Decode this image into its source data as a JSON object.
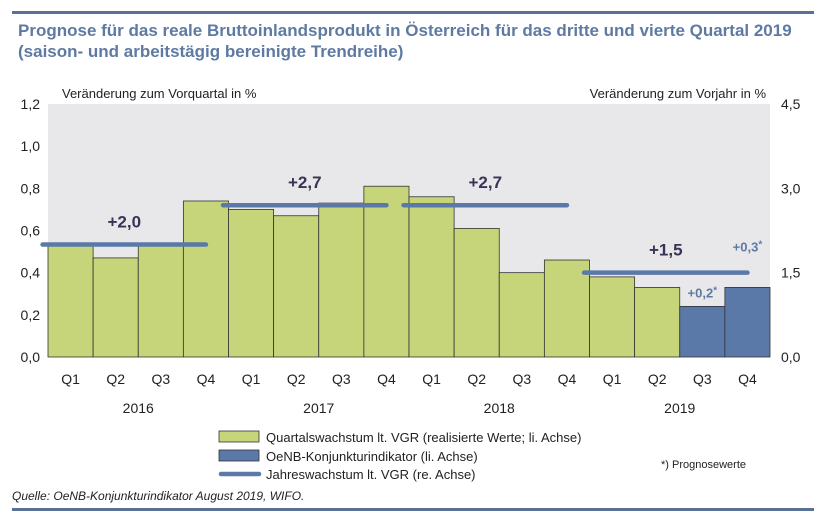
{
  "title": "Prognose für das reale Bruttoinlandsprodukt in Österreich für das dritte und vierte Quartal 2019 (saison- und arbeitstägig bereinigte Trendreihe)",
  "source": "Quelle: OeNB-Konjunkturindikator August 2019, WIFO.",
  "footnote": "*) Prognosewerte",
  "colors": {
    "realized_bar": "#c6d47a",
    "forecast_bar": "#5a78a8",
    "annual_line": "#5a78a8",
    "title": "#5e7aa3",
    "plot_bg": "#e8e8ea"
  },
  "chart_data": {
    "type": "bar",
    "left_axis": {
      "label": "Veränderung zum Vorquartal in %",
      "ylim": [
        0,
        1.2
      ],
      "ticks": [
        "0,0",
        "0,2",
        "0,4",
        "0,6",
        "0,8",
        "1,0",
        "1,2"
      ]
    },
    "right_axis": {
      "label": "Veränderung zum Vorjahr in %",
      "ylim": [
        0,
        4.5
      ],
      "ticks": [
        "0,0",
        "1,5",
        "3,0",
        "4,5"
      ]
    },
    "categories": [
      "Q1",
      "Q2",
      "Q3",
      "Q4",
      "Q1",
      "Q2",
      "Q3",
      "Q4",
      "Q1",
      "Q2",
      "Q3",
      "Q4",
      "Q1",
      "Q2",
      "Q3",
      "Q4"
    ],
    "years": [
      {
        "label": "2016",
        "start": 0,
        "end": 3
      },
      {
        "label": "2017",
        "start": 4,
        "end": 7
      },
      {
        "label": "2018",
        "start": 8,
        "end": 11
      },
      {
        "label": "2019",
        "start": 12,
        "end": 15
      }
    ],
    "series": [
      {
        "name": "Quartalswachstum lt. VGR (realisierte Werte; li. Achse)",
        "kind": "bar",
        "values": [
          0.53,
          0.47,
          0.53,
          0.74,
          0.7,
          0.67,
          0.73,
          0.81,
          0.76,
          0.61,
          0.4,
          0.46,
          0.38,
          0.33,
          null,
          null
        ]
      },
      {
        "name": "OeNB-Konjunkturindikator (li. Achse)",
        "kind": "bar",
        "values": [
          null,
          null,
          null,
          null,
          null,
          null,
          null,
          null,
          null,
          null,
          null,
          null,
          null,
          null,
          0.24,
          0.33
        ]
      },
      {
        "name": "Jahreswachstum lt. VGR (re. Achse)",
        "kind": "line-segments",
        "segments": [
          {
            "start": 0,
            "end": 3,
            "value": 2.0,
            "label": "+2,0"
          },
          {
            "start": 4,
            "end": 7,
            "value": 2.7,
            "label": "+2,7"
          },
          {
            "start": 8,
            "end": 11,
            "value": 2.7,
            "label": "+2,7"
          },
          {
            "start": 12,
            "end": 15,
            "value": 1.5,
            "label": "+1,5"
          }
        ]
      }
    ],
    "forecast_labels": [
      {
        "index": 14,
        "value": 0.24,
        "text": "+0,2",
        "mark": "*"
      },
      {
        "index": 15,
        "value": 0.33,
        "text": "+0,3",
        "mark": "*"
      }
    ],
    "legend": [
      "Quartalswachstum lt. VGR (realisierte Werte; li. Achse)",
      "OeNB-Konjunkturindikator (li. Achse)",
      "Jahreswachstum lt. VGR (re. Achse)"
    ]
  }
}
